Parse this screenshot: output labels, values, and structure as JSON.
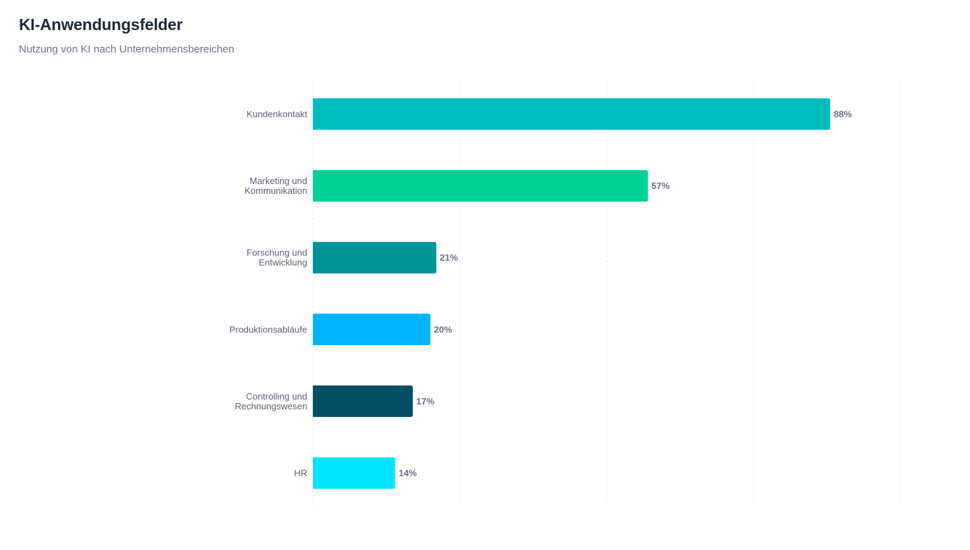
{
  "chart_data": {
    "type": "bar",
    "orientation": "horizontal",
    "title": "KI-Anwendungsfelder",
    "subtitle": "Nutzung von KI nach Unternehmensbereichen",
    "xlabel": "",
    "ylabel": "",
    "xlim": [
      0,
      100
    ],
    "grid": true,
    "legend": "none",
    "value_suffix": "%",
    "categories": [
      [
        "Kundenkontakt"
      ],
      [
        "Marketing und",
        "Kommunikation"
      ],
      [
        "Forschung und",
        "Entwicklung"
      ],
      [
        "Produktionsabläufe"
      ],
      [
        "Controlling und",
        "Rechnungswesen"
      ],
      [
        "HR"
      ]
    ],
    "values": [
      88,
      57,
      21,
      20,
      17,
      14
    ],
    "value_labels": [
      "88%",
      "57%",
      "21%",
      "20%",
      "17%",
      "14%"
    ],
    "colors": [
      "#00bcbd",
      "#00d197",
      "#009494",
      "#00b4ff",
      "#024f62",
      "#00e5ff"
    ]
  }
}
